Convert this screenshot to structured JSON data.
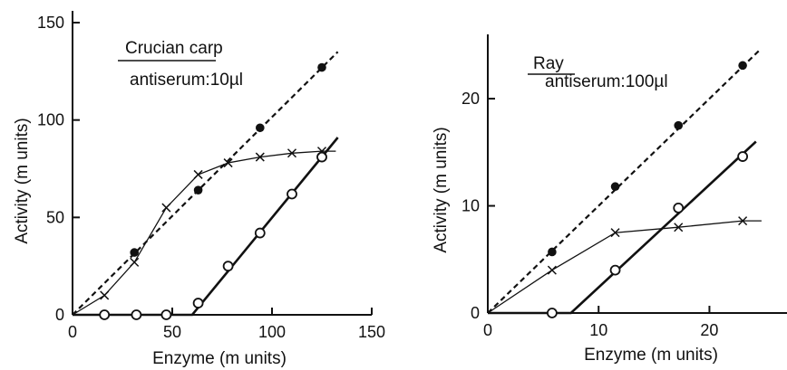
{
  "chart_data": [
    {
      "type": "line",
      "title": "Crucian carp",
      "subtitle": "antiserum:10µl",
      "xlabel": "Enzyme (m units)",
      "ylabel": "Activity (m units)",
      "xlim": [
        0,
        150
      ],
      "ylim": [
        0,
        150
      ],
      "xticks": [
        "0",
        "50",
        "100",
        "150"
      ],
      "yticks": [
        "0",
        "50",
        "100",
        "150"
      ],
      "grid": false,
      "series": [
        {
          "marker": "filled-circle",
          "line": "dashed",
          "points": [
            [
              31,
              32
            ],
            [
              63,
              64
            ],
            [
              94,
              96
            ],
            [
              125,
              127
            ]
          ],
          "fit": [
            [
              0,
              0
            ],
            [
              133,
              135
            ]
          ]
        },
        {
          "marker": "open-circle",
          "line": "solid",
          "points": [
            [
              16,
              0
            ],
            [
              32,
              0
            ],
            [
              47,
              0
            ],
            [
              63,
              6
            ],
            [
              78,
              25
            ],
            [
              94,
              42
            ],
            [
              110,
              62
            ],
            [
              125,
              81
            ]
          ],
          "fit": [
            [
              0,
              0
            ],
            [
              60,
              0
            ],
            [
              133,
              91
            ]
          ]
        },
        {
          "marker": "x",
          "line": "thin",
          "points": [
            [
              16,
              10
            ],
            [
              31,
              27
            ],
            [
              47,
              55
            ],
            [
              63,
              72
            ],
            [
              78,
              78
            ],
            [
              94,
              81
            ],
            [
              110,
              83
            ],
            [
              125,
              84
            ]
          ],
          "fit": [
            [
              0,
              0
            ],
            [
              16,
              10
            ],
            [
              31,
              27
            ],
            [
              47,
              55
            ],
            [
              63,
              72
            ],
            [
              78,
              78
            ],
            [
              94,
              81
            ],
            [
              110,
              83
            ],
            [
              125,
              84
            ],
            [
              132,
              84
            ]
          ]
        }
      ]
    },
    {
      "type": "line",
      "title": "Ray",
      "subtitle": "antiserum:100µl",
      "xlabel": "Enzyme (m units)",
      "ylabel": "Activity (m units)",
      "xlim": [
        0,
        27
      ],
      "ylim": [
        0,
        26
      ],
      "xticks": [
        "0",
        "10",
        "20"
      ],
      "yticks": [
        "0",
        "10",
        "20"
      ],
      "grid": false,
      "series": [
        {
          "marker": "filled-circle",
          "line": "dashed",
          "points": [
            [
              5.8,
              5.7
            ],
            [
              11.5,
              11.8
            ],
            [
              17.2,
              17.5
            ],
            [
              23,
              23.1
            ]
          ],
          "fit": [
            [
              0,
              0
            ],
            [
              24.5,
              24.5
            ]
          ]
        },
        {
          "marker": "open-circle",
          "line": "solid",
          "points": [
            [
              5.8,
              0
            ],
            [
              11.5,
              4
            ],
            [
              17.2,
              9.8
            ],
            [
              23,
              14.6
            ]
          ],
          "fit": [
            [
              0,
              0
            ],
            [
              7.5,
              0
            ],
            [
              24.2,
              16
            ]
          ]
        },
        {
          "marker": "x",
          "line": "thin",
          "points": [
            [
              5.8,
              4
            ],
            [
              11.5,
              7.5
            ],
            [
              17.2,
              8
            ],
            [
              23,
              8.6
            ]
          ],
          "fit": [
            [
              0,
              0
            ],
            [
              5.8,
              4
            ],
            [
              11.5,
              7.5
            ],
            [
              17.2,
              8
            ],
            [
              23,
              8.6
            ],
            [
              24.7,
              8.6
            ]
          ]
        }
      ]
    }
  ]
}
